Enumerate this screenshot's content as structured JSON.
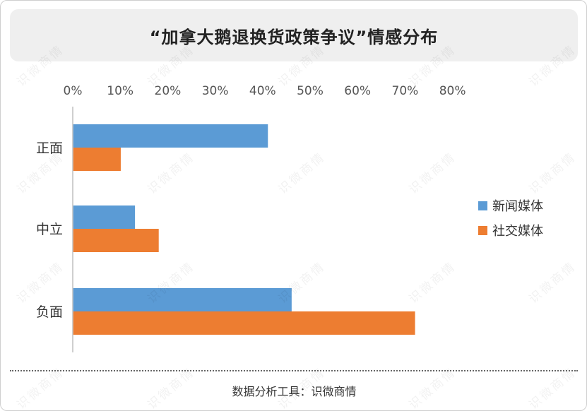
{
  "title": "“加拿大鹅退换货政策争议”情感分布",
  "source": "数据分析工具：识微商情",
  "watermark": "识微商情",
  "chart_data": {
    "type": "bar",
    "orientation": "horizontal",
    "categories": [
      "正面",
      "中立",
      "负面"
    ],
    "series": [
      {
        "name": "新闻媒体",
        "color": "#5b9bd5",
        "values": [
          41,
          13,
          46
        ]
      },
      {
        "name": "社交媒体",
        "color": "#ed7d31",
        "values": [
          10,
          18,
          72
        ]
      }
    ],
    "xlim": [
      0,
      80
    ],
    "xticks": [
      "0%",
      "10%",
      "20%",
      "30%",
      "40%",
      "50%",
      "60%",
      "70%",
      "80%"
    ],
    "axis_position": "top",
    "grid": false,
    "legend_position": "right"
  }
}
